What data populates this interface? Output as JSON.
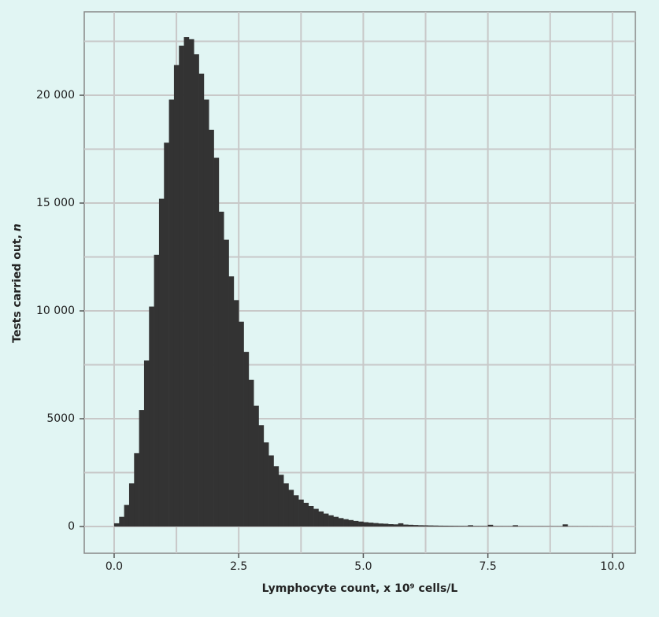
{
  "chart_data": {
    "type": "histogram",
    "xlabel": "Lymphocyte count, x 10⁹ cells/L",
    "ylabel": "Tests carried out,",
    "ylabel_var": "n",
    "color": "#333333",
    "bins": [
      0,
      0.1,
      0.2,
      0.3,
      0.4,
      0.5,
      0.6,
      0.7,
      0.8,
      0.9,
      1,
      1.1,
      1.2,
      1.3,
      1.4,
      1.5,
      1.6,
      1.7,
      1.8,
      1.9,
      2,
      2.1,
      2.2,
      2.3,
      2.4,
      2.5,
      2.6,
      2.7,
      2.8,
      2.9,
      3,
      3.1,
      3.2,
      3.3,
      3.4,
      3.5,
      3.6,
      3.7,
      3.8,
      3.9,
      4,
      4.1,
      4.2,
      4.3,
      4.4,
      4.5,
      4.6,
      4.7,
      4.8,
      4.9,
      5,
      5.1,
      5.2,
      5.3,
      5.4,
      5.5,
      5.6,
      5.7,
      5.8,
      5.9,
      6,
      6.1,
      6.2,
      6.3,
      6.4,
      6.5,
      6.6,
      6.7,
      6.8,
      6.9,
      7,
      7.1,
      7.2,
      7.3,
      7.4,
      7.5,
      7.6,
      7.7,
      7.8,
      7.9,
      8,
      8.1,
      8.2,
      8.3,
      8.4,
      8.5,
      8.6,
      8.7,
      8.8,
      8.9,
      9,
      9.1,
      9.2,
      9.3,
      9.4,
      9.5,
      9.6,
      9.7,
      9.8,
      9.9,
      10
    ],
    "values": [
      150,
      450,
      1000,
      2000,
      3400,
      5400,
      7700,
      10200,
      12600,
      15200,
      17800,
      19800,
      21400,
      22300,
      22700,
      22600,
      21900,
      21000,
      19800,
      18400,
      17100,
      14600,
      13300,
      11600,
      10500,
      9500,
      8100,
      6800,
      5600,
      4700,
      3900,
      3300,
      2800,
      2400,
      2000,
      1700,
      1450,
      1250,
      1100,
      950,
      820,
      700,
      600,
      520,
      450,
      390,
      340,
      300,
      260,
      230,
      200,
      180,
      160,
      140,
      130,
      110,
      100,
      150,
      90,
      80,
      70,
      60,
      55,
      50,
      45,
      40,
      38,
      35,
      32,
      30,
      28,
      60,
      26,
      25,
      24,
      80,
      22,
      21,
      20,
      20,
      60,
      19,
      18,
      18,
      17,
      17,
      16,
      16,
      15,
      15,
      100,
      14,
      14,
      13,
      13,
      12,
      12,
      11,
      11,
      10
    ],
    "xlim": [
      -0.6,
      10.46
    ],
    "ylim": [
      -1240,
      23870
    ],
    "xticks": [
      {
        "value": 0,
        "label": "0.0"
      },
      2.5,
      {
        "value": 5,
        "label": "5.0"
      },
      7.5,
      {
        "value": 10,
        "label": "10.0"
      }
    ],
    "yticks": [
      0,
      5000,
      {
        "value": 10000,
        "label": "10 000"
      },
      {
        "value": 15000,
        "label": "15 000"
      },
      {
        "value": 20000,
        "label": "20 000"
      }
    ],
    "xminor": [
      1.25,
      3.75,
      6.25,
      8.75
    ],
    "yminor": [
      2500,
      7500,
      12500,
      17500,
      22500
    ],
    "grid": true
  }
}
